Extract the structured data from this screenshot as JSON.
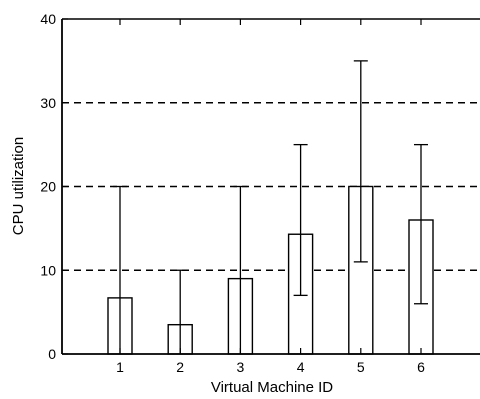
{
  "chart_data": {
    "type": "bar",
    "title": "",
    "xlabel": "Virtual Machine ID",
    "ylabel": "CPU utilization",
    "categories": [
      "1",
      "2",
      "3",
      "4",
      "5",
      "6"
    ],
    "values": [
      6.7,
      3.5,
      9.0,
      14.3,
      20.0,
      16.0
    ],
    "error_low": [
      0,
      0,
      0,
      7,
      11,
      6
    ],
    "error_high": [
      20,
      10,
      20,
      25,
      35,
      25
    ],
    "ylim": [
      0,
      40
    ],
    "yticks": [
      "0",
      "10",
      "20",
      "30",
      "40"
    ],
    "grid": "dashed horizontal lines at y = 10, 20, 30",
    "legend": "none",
    "bar_fill": "#ffffff",
    "stroke_color": "#000000"
  }
}
